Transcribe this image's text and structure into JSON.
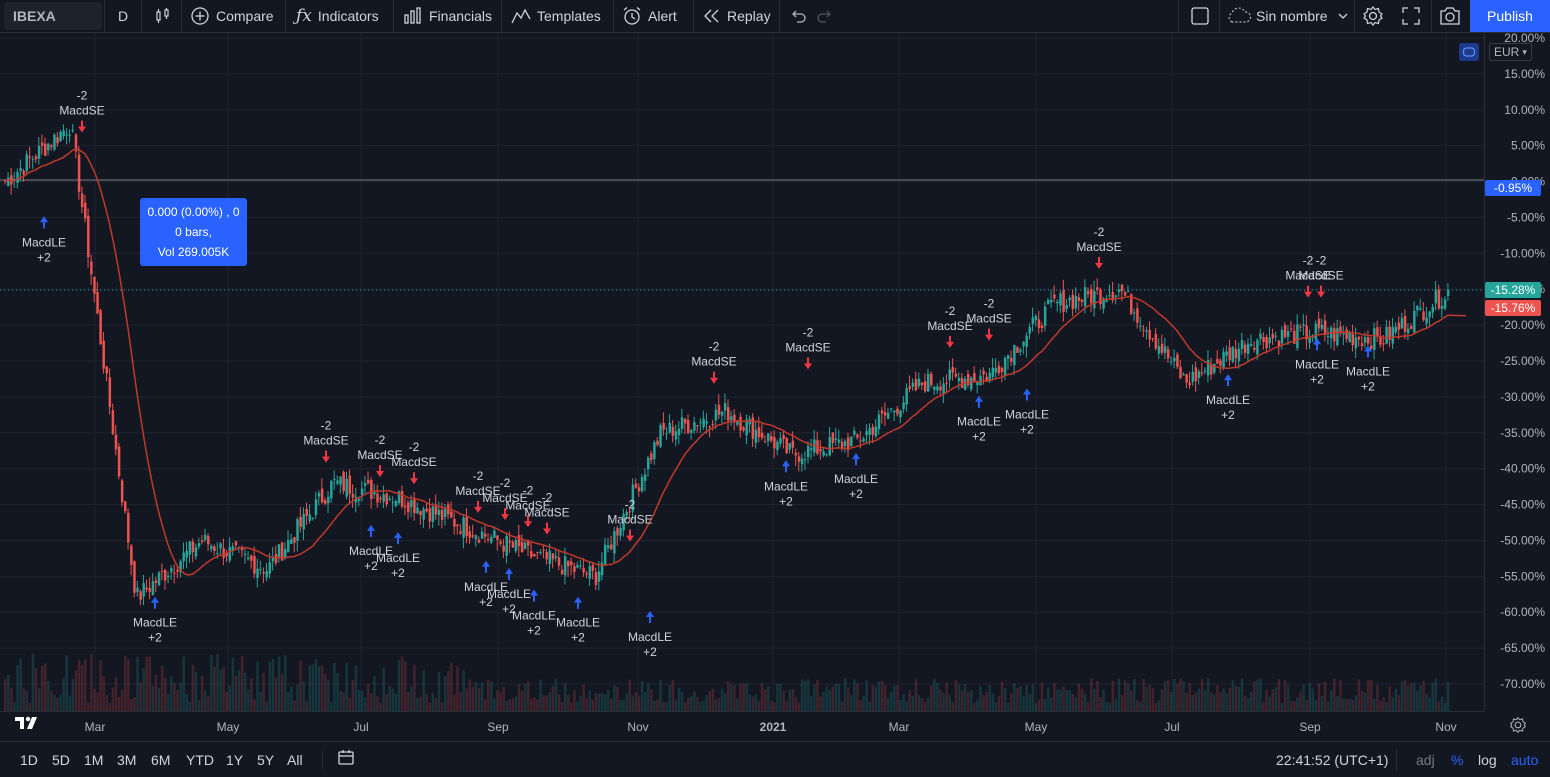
{
  "toolbar": {
    "symbol": "IBEXA",
    "interval": "D",
    "compare_label": "Compare",
    "indicators_label": "Indicators",
    "financials_label": "Financials",
    "templates_label": "Templates",
    "alert_label": "Alert",
    "replay_label": "Replay",
    "layout_name": "Sin nombre",
    "publish_label": "Publish"
  },
  "price_axis": {
    "currency": "EUR",
    "ticks": [
      "20.00%",
      "15.00%",
      "10.00%",
      "5.00%",
      "0.00%",
      "-5.00%",
      "-10.00%",
      "-15.00%",
      "-20.00%",
      "-25.00%",
      "-30.00%",
      "-35.00%",
      "-40.00%",
      "-45.00%",
      "-50.00%",
      "-55.00%",
      "-60.00%",
      "-65.00%",
      "-70.00%"
    ],
    "current_tag": "-0.95%",
    "last_tag": "-15.28%",
    "ma_tag": "-15.76%"
  },
  "tooltip": {
    "line1": "0.000 (0.00%) , 0",
    "line2": "0 bars,",
    "line3": "Vol 269.005K"
  },
  "time_axis": {
    "labels": [
      "Mar",
      "May",
      "Jul",
      "Sep",
      "Nov",
      "2021",
      "Mar",
      "May",
      "Jul",
      "Sep",
      "Nov"
    ]
  },
  "signals": {
    "long_name": "MacdLE",
    "long_qty": "+2",
    "short_name": "MacdSE",
    "short_qty": "-2"
  },
  "bottom_bar": {
    "ranges": [
      "1D",
      "5D",
      "1M",
      "3M",
      "6M",
      "YTD",
      "1Y",
      "5Y",
      "All"
    ],
    "clock": "22:41:52 (UTC+1)",
    "adj_label": "adj",
    "percent_label": "%",
    "log_label": "log",
    "auto_label": "auto"
  },
  "colors": {
    "up": "#26a69a",
    "down": "#ef5350",
    "ma": "#c0392b",
    "long_arrow": "#2962ff",
    "short_arrow": "#f23645",
    "accent": "#2962ff"
  },
  "chart_data": {
    "type": "line",
    "series": [
      {
        "x": [
          "2020-01",
          "2020-02",
          "2020-03",
          "2020-04",
          "2020-05",
          "2020-06",
          "2020-07",
          "2020-08",
          "2020-09",
          "2020-10",
          "2020-11",
          "2020-12",
          "2021-01",
          "2021-02",
          "2021-03",
          "2021-04",
          "2021-05",
          "2021-06",
          "2021-07",
          "2021-08",
          "2021-09",
          "2021-10",
          "2021-11"
        ],
        "values": [
          0,
          8,
          -58,
          -50,
          -54,
          -42,
          -44,
          -48,
          -52,
          -55,
          -35,
          -32,
          -38,
          -36,
          -28,
          -27,
          -17,
          -15,
          -28,
          -22,
          -21,
          -22,
          -15.28
        ]
      }
    ],
    "ylim": [
      -72,
      20
    ]
  }
}
